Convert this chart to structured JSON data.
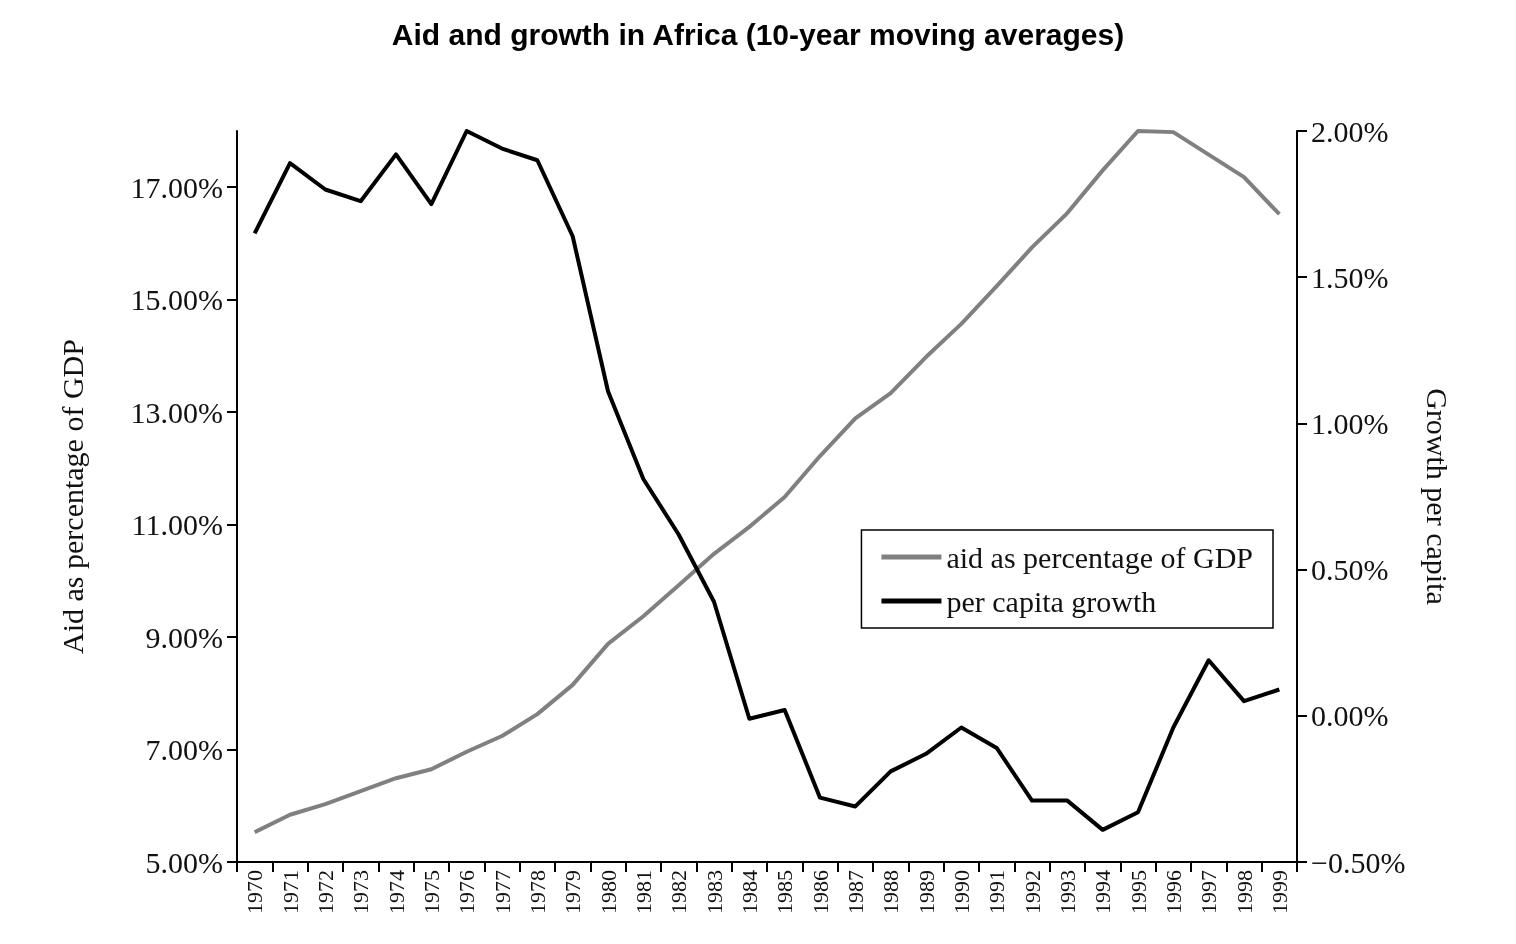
{
  "chart_data": {
    "type": "line",
    "title": "Aid and growth in Africa (10-year moving averages)",
    "ylabel": "Aid as percentage of GDP",
    "y2label": "Growth per capita",
    "categories": [
      "1970",
      "1971",
      "1972",
      "1973",
      "1974",
      "1975",
      "1976",
      "1977",
      "1978",
      "1979",
      "1980",
      "1981",
      "1982",
      "1983",
      "1984",
      "1985",
      "1986",
      "1987",
      "1988",
      "1989",
      "1990",
      "1991",
      "1992",
      "1993",
      "1994",
      "1995",
      "1996",
      "1997",
      "1998",
      "1999"
    ],
    "series": [
      {
        "name": "aid as percentage of GDP",
        "color": "#808080",
        "values": [
          5.53,
          5.84,
          6.03,
          6.26,
          6.49,
          6.65,
          6.96,
          7.24,
          7.63,
          8.15,
          8.88,
          9.37,
          9.92,
          10.48,
          10.96,
          11.49,
          12.22,
          12.89,
          13.34,
          13.98,
          14.57,
          15.24,
          15.93,
          16.54,
          17.3,
          18.0,
          17.98,
          17.58,
          17.18,
          16.52
        ]
      },
      {
        "name": "per capita growth",
        "color": "#000000",
        "axis": "y2",
        "values": [
          1.65,
          1.89,
          1.8,
          1.76,
          1.92,
          1.75,
          2.0,
          1.94,
          1.9,
          1.64,
          1.11,
          0.81,
          0.62,
          0.39,
          -0.01,
          0.02,
          -0.28,
          -0.31,
          -0.19,
          -0.13,
          -0.04,
          -0.11,
          -0.29,
          -0.29,
          -0.39,
          -0.33,
          -0.04,
          0.19,
          0.05,
          0.09
        ]
      }
    ],
    "ylim": [
      5,
      18
    ],
    "yticks": [
      {
        "value": 5,
        "label": "5.00%"
      },
      {
        "value": 7,
        "label": "7.00%"
      },
      {
        "value": 9,
        "label": "9.00%"
      },
      {
        "value": 11,
        "label": "11.00%"
      },
      {
        "value": 13,
        "label": "13.00%"
      },
      {
        "value": 15,
        "label": "15.00%"
      },
      {
        "value": 17,
        "label": "17.00%"
      }
    ],
    "y2lim": [
      -0.5,
      2
    ],
    "y2ticks": [
      {
        "value": -0.5,
        "label": "−0.50%"
      },
      {
        "value": 0,
        "label": "0.00%"
      },
      {
        "value": 0.5,
        "label": "0.50%"
      },
      {
        "value": 1,
        "label": "1.00%"
      },
      {
        "value": 1.5,
        "label": "1.50%"
      },
      {
        "value": 2,
        "label": "2.00%"
      }
    ],
    "legend": "right",
    "marker": "none",
    "line_style": "solid"
  }
}
